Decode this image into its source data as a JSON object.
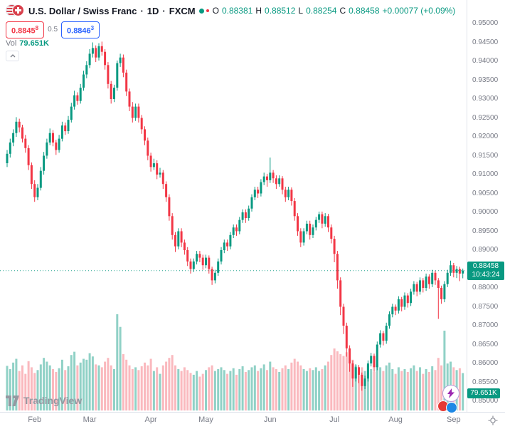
{
  "header": {
    "symbol_title": "U.S. Dollar / Swiss Franc",
    "separator": "·",
    "interval": "1D",
    "exchange": "FXCM",
    "ohlc": {
      "o_label": "O",
      "o": "0.88381",
      "h_label": "H",
      "h": "0.88512",
      "l_label": "L",
      "l": "0.88254",
      "c_label": "C",
      "c": "0.88458",
      "change": "+0.00077 (+0.09%)"
    },
    "sell_price": "0.8845",
    "sell_sup": "8",
    "spread": "0.5",
    "buy_price": "0.8846",
    "buy_sup": "3",
    "vol_label": "Vol",
    "vol_value": "79.651K"
  },
  "axes": {
    "price_labels": [
      "0.95000",
      "0.94500",
      "0.94000",
      "0.93500",
      "0.93000",
      "0.92500",
      "0.92000",
      "0.91500",
      "0.91000",
      "0.90500",
      "0.90000",
      "0.89500",
      "0.89000",
      "0.88500",
      "0.88000",
      "0.87500",
      "0.87000",
      "0.86500",
      "0.86000",
      "0.85500",
      "0.85000"
    ],
    "time_labels": [
      {
        "label": "Feb",
        "i": 9
      },
      {
        "label": "Mar",
        "i": 27
      },
      {
        "label": "Apr",
        "i": 47
      },
      {
        "label": "May",
        "i": 65
      },
      {
        "label": "Jun",
        "i": 86
      },
      {
        "label": "Jul",
        "i": 107
      },
      {
        "label": "Aug",
        "i": 127
      },
      {
        "label": "Sep",
        "i": 146
      }
    ]
  },
  "badges": {
    "price": {
      "value": "0.88458",
      "countdown": "10:43:24",
      "color": "#089981"
    },
    "volume": {
      "value": "79.651K",
      "color": "#089981"
    }
  },
  "watermark": {
    "brand": "TradingView"
  },
  "colors": {
    "up": "#089981",
    "down": "#f23645",
    "vol_up": "rgba(8,153,129,0.45)",
    "vol_down": "rgba(242,54,69,0.35)",
    "accent_blue": "#2962ff",
    "axis_text": "#787b86"
  },
  "chart_data": {
    "type": "candlestick+volume",
    "title": "U.S. Dollar / Swiss Franc",
    "interval": "1D",
    "exchange": "FXCM",
    "price_axis": {
      "min": 0.85,
      "max": 0.95,
      "step": 0.005
    },
    "x_axis_months": [
      "Feb",
      "Mar",
      "Apr",
      "May",
      "Jun",
      "Jul",
      "Aug",
      "Sep"
    ],
    "last": {
      "open": 0.88381,
      "high": 0.88512,
      "low": 0.88254,
      "close": 0.88458,
      "change": 0.00077,
      "change_pct": 0.09,
      "volume_k": 79.651,
      "countdown": "10:43:24"
    },
    "volume_axis_max": 220,
    "candles": [
      [
        0.913,
        0.9165,
        0.912,
        0.9155
      ],
      [
        0.9155,
        0.9195,
        0.9145,
        0.9185
      ],
      [
        0.9185,
        0.922,
        0.9175,
        0.921
      ],
      [
        0.921,
        0.9252,
        0.92,
        0.924
      ],
      [
        0.924,
        0.9248,
        0.9212,
        0.9225
      ],
      [
        0.9225,
        0.9232,
        0.9185,
        0.9195
      ],
      [
        0.9195,
        0.9205,
        0.9158,
        0.917
      ],
      [
        0.917,
        0.9178,
        0.9112,
        0.9125
      ],
      [
        0.9125,
        0.9132,
        0.9062,
        0.9075
      ],
      [
        0.9075,
        0.9085,
        0.9028,
        0.904
      ],
      [
        0.904,
        0.9075,
        0.9032,
        0.9065
      ],
      [
        0.9065,
        0.912,
        0.9058,
        0.911
      ],
      [
        0.911,
        0.916,
        0.91,
        0.915
      ],
      [
        0.915,
        0.9195,
        0.9142,
        0.9185
      ],
      [
        0.9185,
        0.9222,
        0.9178,
        0.921
      ],
      [
        0.921,
        0.9218,
        0.9175,
        0.9185
      ],
      [
        0.9185,
        0.9192,
        0.9152,
        0.9165
      ],
      [
        0.9165,
        0.9205,
        0.9158,
        0.9195
      ],
      [
        0.9195,
        0.924,
        0.9188,
        0.923
      ],
      [
        0.923,
        0.9238,
        0.9205,
        0.9215
      ],
      [
        0.9215,
        0.9255,
        0.9208,
        0.9245
      ],
      [
        0.9245,
        0.929,
        0.9238,
        0.928
      ],
      [
        0.928,
        0.9322,
        0.9272,
        0.931
      ],
      [
        0.931,
        0.9318,
        0.9285,
        0.9295
      ],
      [
        0.9295,
        0.934,
        0.9288,
        0.933
      ],
      [
        0.933,
        0.9375,
        0.9322,
        0.9365
      ],
      [
        0.9365,
        0.94,
        0.9355,
        0.939
      ],
      [
        0.939,
        0.9432,
        0.9382,
        0.942
      ],
      [
        0.942,
        0.945,
        0.941,
        0.9435
      ],
      [
        0.9435,
        0.9442,
        0.9398,
        0.941
      ],
      [
        0.941,
        0.9448,
        0.9402,
        0.944
      ],
      [
        0.944,
        0.9452,
        0.9415,
        0.9425
      ],
      [
        0.9425,
        0.9432,
        0.9378,
        0.939
      ],
      [
        0.939,
        0.9398,
        0.9328,
        0.934
      ],
      [
        0.934,
        0.9348,
        0.9288,
        0.93
      ],
      [
        0.93,
        0.9338,
        0.9292,
        0.933
      ],
      [
        0.933,
        0.9402,
        0.9322,
        0.9395
      ],
      [
        0.9395,
        0.942,
        0.9385,
        0.941
      ],
      [
        0.941,
        0.9418,
        0.9358,
        0.937
      ],
      [
        0.937,
        0.9378,
        0.9308,
        0.932
      ],
      [
        0.932,
        0.9328,
        0.9268,
        0.928
      ],
      [
        0.928,
        0.9292,
        0.9238,
        0.925
      ],
      [
        0.925,
        0.9288,
        0.9242,
        0.928
      ],
      [
        0.928,
        0.9288,
        0.9238,
        0.925
      ],
      [
        0.925,
        0.9258,
        0.9208,
        0.922
      ],
      [
        0.922,
        0.9228,
        0.9178,
        0.919
      ],
      [
        0.919,
        0.9198,
        0.9138,
        0.915
      ],
      [
        0.915,
        0.9158,
        0.9108,
        0.912
      ],
      [
        0.912,
        0.9142,
        0.9112,
        0.913
      ],
      [
        0.913,
        0.9138,
        0.9088,
        0.91
      ],
      [
        0.91,
        0.9118,
        0.9092,
        0.9105
      ],
      [
        0.9105,
        0.9112,
        0.9062,
        0.9075
      ],
      [
        0.9075,
        0.9082,
        0.9028,
        0.904
      ],
      [
        0.904,
        0.9048,
        0.8978,
        0.899
      ],
      [
        0.899,
        0.8998,
        0.8928,
        0.894
      ],
      [
        0.894,
        0.8948,
        0.8895,
        0.891
      ],
      [
        0.891,
        0.8958,
        0.8902,
        0.895
      ],
      [
        0.895,
        0.8958,
        0.8908,
        0.892
      ],
      [
        0.892,
        0.8928,
        0.8888,
        0.89
      ],
      [
        0.89,
        0.8908,
        0.8858,
        0.887
      ],
      [
        0.887,
        0.8878,
        0.8838,
        0.885
      ],
      [
        0.885,
        0.8878,
        0.8842,
        0.887
      ],
      [
        0.887,
        0.8898,
        0.8862,
        0.889
      ],
      [
        0.889,
        0.8898,
        0.8868,
        0.888
      ],
      [
        0.888,
        0.8888,
        0.8848,
        0.886
      ],
      [
        0.886,
        0.8888,
        0.8852,
        0.888
      ],
      [
        0.888,
        0.8886,
        0.8838,
        0.885
      ],
      [
        0.885,
        0.8856,
        0.8808,
        0.882
      ],
      [
        0.882,
        0.8848,
        0.8812,
        0.884
      ],
      [
        0.884,
        0.8878,
        0.8832,
        0.887
      ],
      [
        0.887,
        0.8908,
        0.8862,
        0.89
      ],
      [
        0.89,
        0.8928,
        0.8892,
        0.892
      ],
      [
        0.892,
        0.8928,
        0.8898,
        0.891
      ],
      [
        0.891,
        0.8948,
        0.8902,
        0.894
      ],
      [
        0.894,
        0.8968,
        0.8932,
        0.896
      ],
      [
        0.896,
        0.8968,
        0.8938,
        0.895
      ],
      [
        0.895,
        0.8988,
        0.8942,
        0.898
      ],
      [
        0.898,
        0.9008,
        0.8972,
        0.9
      ],
      [
        0.9,
        0.9008,
        0.8972,
        0.8985
      ],
      [
        0.8985,
        0.9018,
        0.8978,
        0.901
      ],
      [
        0.901,
        0.9048,
        0.9002,
        0.904
      ],
      [
        0.904,
        0.9068,
        0.9032,
        0.906
      ],
      [
        0.906,
        0.9068,
        0.9038,
        0.905
      ],
      [
        0.905,
        0.9088,
        0.9042,
        0.908
      ],
      [
        0.908,
        0.9105,
        0.9072,
        0.9095
      ],
      [
        0.9095,
        0.9102,
        0.9068,
        0.9085
      ],
      [
        0.9085,
        0.9145,
        0.9078,
        0.9105
      ],
      [
        0.9105,
        0.9112,
        0.9078,
        0.909
      ],
      [
        0.909,
        0.9098,
        0.9062,
        0.9075
      ],
      [
        0.9075,
        0.9098,
        0.9068,
        0.909
      ],
      [
        0.909,
        0.9096,
        0.9048,
        0.906
      ],
      [
        0.906,
        0.9068,
        0.9028,
        0.904
      ],
      [
        0.904,
        0.9068,
        0.9032,
        0.906
      ],
      [
        0.906,
        0.9066,
        0.9018,
        0.903
      ],
      [
        0.903,
        0.9038,
        0.8978,
        0.899
      ],
      [
        0.899,
        0.8998,
        0.8938,
        0.895
      ],
      [
        0.895,
        0.8958,
        0.8908,
        0.892
      ],
      [
        0.892,
        0.8958,
        0.8912,
        0.895
      ],
      [
        0.895,
        0.8978,
        0.8942,
        0.897
      ],
      [
        0.897,
        0.8978,
        0.8928,
        0.894
      ],
      [
        0.894,
        0.8968,
        0.8932,
        0.896
      ],
      [
        0.896,
        0.8988,
        0.8952,
        0.898
      ],
      [
        0.898,
        0.9002,
        0.8972,
        0.8995
      ],
      [
        0.8995,
        0.9002,
        0.8958,
        0.897
      ],
      [
        0.897,
        0.8998,
        0.8962,
        0.899
      ],
      [
        0.899,
        0.8996,
        0.8948,
        0.896
      ],
      [
        0.896,
        0.8968,
        0.8918,
        0.893
      ],
      [
        0.893,
        0.8938,
        0.8868,
        0.889
      ],
      [
        0.889,
        0.8898,
        0.8798,
        0.882
      ],
      [
        0.882,
        0.8828,
        0.8728,
        0.875
      ],
      [
        0.875,
        0.8758,
        0.8678,
        0.87
      ],
      [
        0.87,
        0.8708,
        0.8618,
        0.864
      ],
      [
        0.864,
        0.8648,
        0.8578,
        0.86
      ],
      [
        0.86,
        0.8608,
        0.8538,
        0.856
      ],
      [
        0.856,
        0.8598,
        0.8552,
        0.859
      ],
      [
        0.859,
        0.8596,
        0.8548,
        0.857
      ],
      [
        0.857,
        0.8576,
        0.8528,
        0.854
      ],
      [
        0.854,
        0.8568,
        0.8532,
        0.856
      ],
      [
        0.856,
        0.8608,
        0.8552,
        0.86
      ],
      [
        0.86,
        0.8628,
        0.8592,
        0.862
      ],
      [
        0.862,
        0.8626,
        0.8578,
        0.859
      ],
      [
        0.859,
        0.8658,
        0.8582,
        0.865
      ],
      [
        0.865,
        0.8688,
        0.8642,
        0.868
      ],
      [
        0.868,
        0.8686,
        0.8648,
        0.866
      ],
      [
        0.866,
        0.8708,
        0.8652,
        0.87
      ],
      [
        0.87,
        0.8738,
        0.8692,
        0.873
      ],
      [
        0.873,
        0.8758,
        0.8722,
        0.875
      ],
      [
        0.875,
        0.8756,
        0.8728,
        0.874
      ],
      [
        0.874,
        0.8778,
        0.8732,
        0.877
      ],
      [
        0.877,
        0.8776,
        0.8738,
        0.875
      ],
      [
        0.875,
        0.8788,
        0.8742,
        0.878
      ],
      [
        0.878,
        0.8786,
        0.8748,
        0.876
      ],
      [
        0.876,
        0.8798,
        0.8752,
        0.879
      ],
      [
        0.879,
        0.8818,
        0.8782,
        0.881
      ],
      [
        0.881,
        0.8816,
        0.8778,
        0.879
      ],
      [
        0.879,
        0.8828,
        0.8782,
        0.882
      ],
      [
        0.882,
        0.8826,
        0.8788,
        0.88
      ],
      [
        0.88,
        0.8838,
        0.8792,
        0.883
      ],
      [
        0.883,
        0.8836,
        0.8798,
        0.881
      ],
      [
        0.881,
        0.8848,
        0.8802,
        0.884
      ],
      [
        0.884,
        0.8846,
        0.8808,
        0.882
      ],
      [
        0.882,
        0.8826,
        0.8718,
        0.88
      ],
      [
        0.88,
        0.8806,
        0.8758,
        0.877
      ],
      [
        0.877,
        0.8818,
        0.8762,
        0.881
      ],
      [
        0.881,
        0.8848,
        0.8802,
        0.884
      ],
      [
        0.884,
        0.8872,
        0.8832,
        0.886
      ],
      [
        0.886,
        0.8866,
        0.8828,
        0.884
      ],
      [
        0.884,
        0.8858,
        0.8826,
        0.885
      ],
      [
        0.885,
        0.8856,
        0.8818,
        0.8838
      ],
      [
        0.88381,
        0.88512,
        0.88254,
        0.88458
      ]
    ],
    "volumes": [
      95,
      88,
      102,
      110,
      84,
      96,
      78,
      105,
      92,
      80,
      86,
      98,
      112,
      104,
      96,
      88,
      82,
      90,
      108,
      86,
      94,
      118,
      125,
      96,
      102,
      110,
      108,
      122,
      115,
      98,
      96,
      92,
      104,
      112,
      96,
      88,
      205,
      178,
      120,
      108,
      96,
      88,
      92,
      86,
      94,
      102,
      96,
      110,
      84,
      92,
      78,
      96,
      104,
      112,
      118,
      96,
      88,
      84,
      92,
      86,
      80,
      76,
      84,
      72,
      78,
      86,
      92,
      96,
      84,
      88,
      92,
      86,
      78,
      84,
      90,
      76,
      88,
      94,
      82,
      86,
      92,
      96,
      84,
      90,
      98,
      86,
      104,
      92,
      88,
      82,
      90,
      96,
      88,
      102,
      110,
      104,
      96,
      88,
      84,
      90,
      86,
      92,
      84,
      88,
      96,
      104,
      118,
      132,
      126,
      120,
      116,
      124,
      112,
      108,
      96,
      88,
      92,
      84,
      96,
      88,
      82,
      98,
      92,
      84,
      96,
      102,
      88,
      78,
      92,
      84,
      88,
      82,
      90,
      96,
      84,
      92,
      78,
      88,
      82,
      94,
      86,
      112,
      96,
      170,
      100,
      104,
      92,
      86,
      90,
      79.651
    ]
  }
}
